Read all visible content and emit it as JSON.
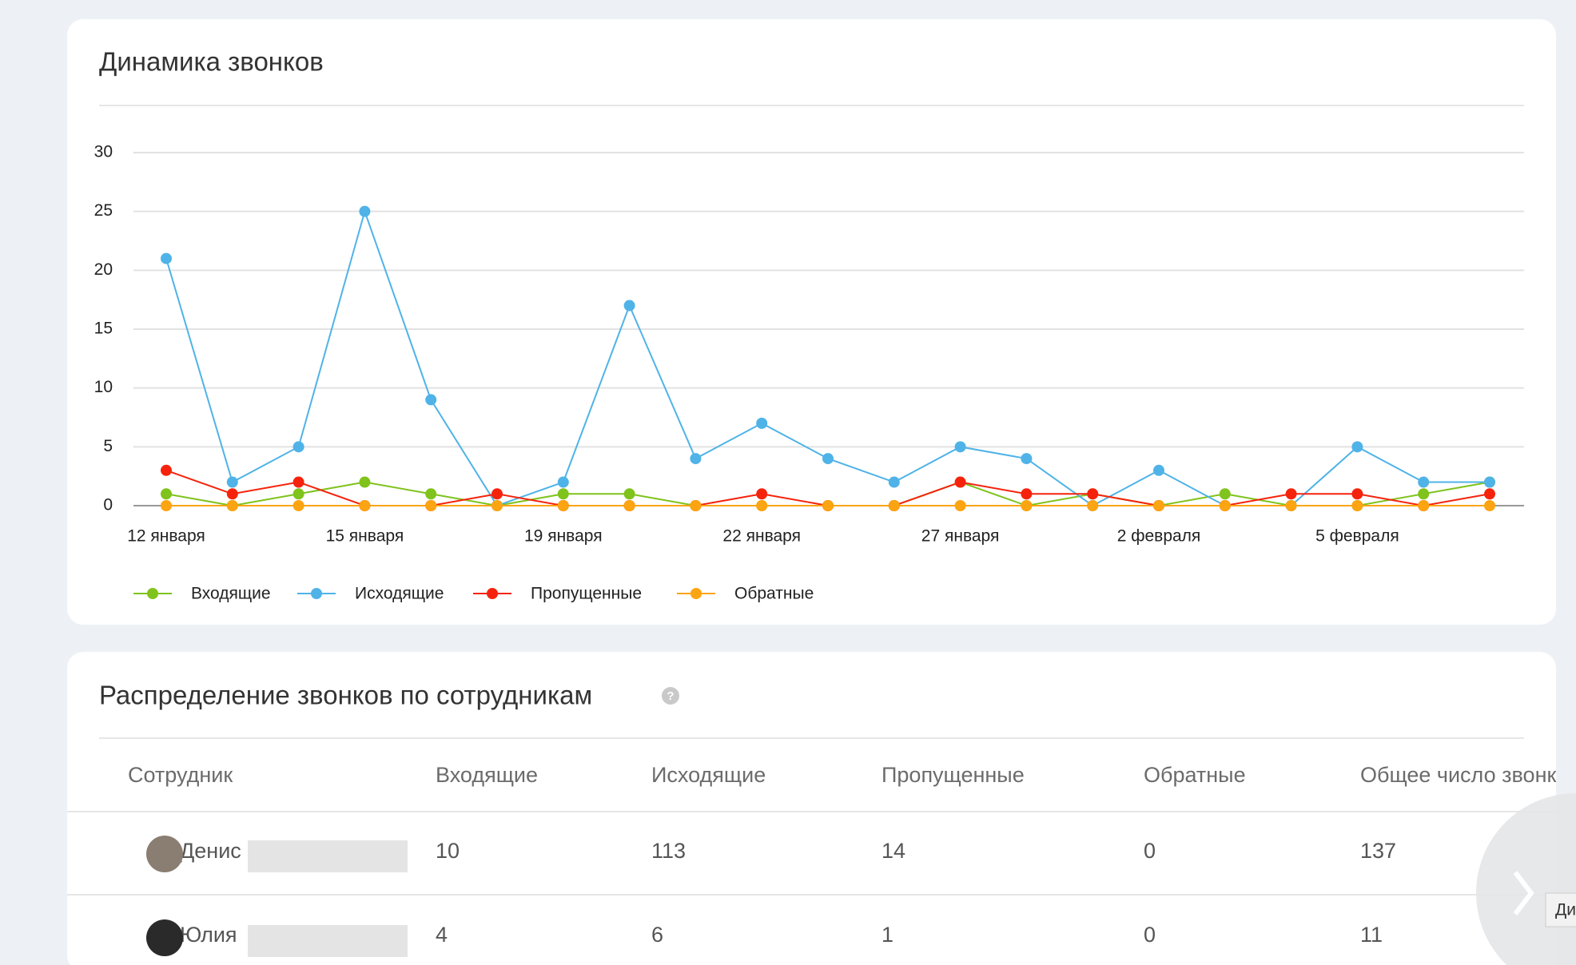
{
  "chart_data": {
    "type": "line",
    "title": "Динамика звонков",
    "categories": [
      "12 января",
      null,
      null,
      "15 января",
      null,
      null,
      "19 января",
      null,
      null,
      "22 января",
      null,
      null,
      "27 января",
      null,
      null,
      "2 февраля",
      null,
      null,
      "5 февраля",
      null,
      null
    ],
    "series": [
      {
        "name": "Входящие",
        "color": "#7fc31c",
        "values": [
          1,
          0,
          1,
          2,
          1,
          0,
          1,
          1,
          0,
          0,
          0,
          0,
          2,
          0,
          1,
          0,
          1,
          0,
          0,
          1,
          2
        ]
      },
      {
        "name": "Исходящие",
        "color": "#4fb3e8",
        "values": [
          21,
          2,
          5,
          25,
          9,
          0,
          2,
          17,
          4,
          7,
          4,
          2,
          5,
          4,
          0,
          3,
          0,
          0,
          5,
          2,
          2
        ]
      },
      {
        "name": "Пропущенные",
        "color": "#f5230c",
        "values": [
          3,
          1,
          2,
          0,
          0,
          1,
          0,
          0,
          0,
          1,
          0,
          0,
          2,
          1,
          1,
          0,
          0,
          1,
          1,
          0,
          1
        ]
      },
      {
        "name": "Обратные",
        "color": "#fca412",
        "values": [
          0,
          0,
          0,
          0,
          0,
          0,
          0,
          0,
          0,
          0,
          0,
          0,
          0,
          0,
          0,
          0,
          0,
          0,
          0,
          0,
          0
        ]
      }
    ],
    "ylim": [
      0,
      30
    ],
    "yticks": [
      0,
      5,
      10,
      15,
      20,
      25,
      30
    ],
    "grid": true,
    "legend": "bottom"
  },
  "table": {
    "title": "Распределение звонков по сотрудникам",
    "header": [
      "Сотрудник",
      "Входящие",
      "Исходящие",
      "Пропущенные",
      "Обратные",
      "Общее число звонков"
    ],
    "rows": [
      [
        "Денис",
        "10",
        "113",
        "14",
        "0",
        "137"
      ],
      [
        "Юлия",
        "4",
        "6",
        "1",
        "0",
        "11"
      ]
    ]
  },
  "tooltip": "Ди"
}
